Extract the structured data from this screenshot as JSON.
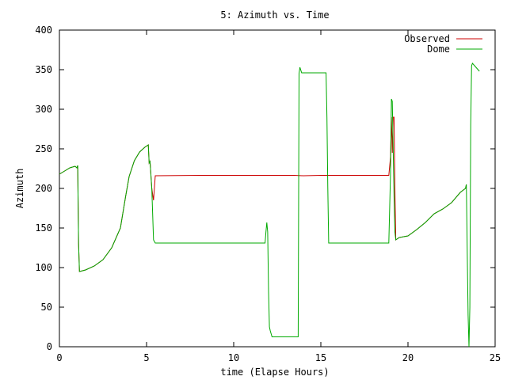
{
  "chart_data": {
    "type": "line",
    "title": "5: Azimuth vs. Time",
    "xlabel": "time (Elapse Hours)",
    "ylabel": "Azimuth",
    "xlim": [
      0,
      25
    ],
    "ylim": [
      0,
      400
    ],
    "xticks": [
      0,
      5,
      10,
      15,
      20,
      25
    ],
    "yticks": [
      0,
      50,
      100,
      150,
      200,
      250,
      300,
      350,
      400
    ],
    "legend_position": "top-right",
    "grid": false,
    "series": [
      {
        "name": "Observed",
        "color": "#cc0000",
        "points": [
          [
            0.0,
            218
          ],
          [
            0.3,
            222
          ],
          [
            0.6,
            226
          ],
          [
            0.9,
            228
          ],
          [
            1.0,
            226
          ],
          [
            1.05,
            229
          ],
          [
            1.1,
            130
          ],
          [
            1.15,
            95
          ],
          [
            1.5,
            97
          ],
          [
            2.0,
            102
          ],
          [
            2.5,
            110
          ],
          [
            3.0,
            125
          ],
          [
            3.5,
            150
          ],
          [
            3.8,
            190
          ],
          [
            4.0,
            215
          ],
          [
            4.3,
            235
          ],
          [
            4.6,
            246
          ],
          [
            4.9,
            252
          ],
          [
            5.1,
            255
          ],
          [
            5.15,
            232
          ],
          [
            5.2,
            234
          ],
          [
            5.3,
            200
          ],
          [
            5.4,
            185
          ],
          [
            5.5,
            216
          ],
          [
            8.0,
            216.5
          ],
          [
            10.0,
            216.5
          ],
          [
            12.0,
            216.5
          ],
          [
            13.5,
            216.5
          ],
          [
            14.0,
            216
          ],
          [
            15.0,
            216.5
          ],
          [
            16.0,
            216.5
          ],
          [
            18.0,
            216.5
          ],
          [
            18.9,
            216.5
          ],
          [
            19.0,
            240
          ],
          [
            19.05,
            290
          ],
          [
            19.1,
            245
          ],
          [
            19.15,
            290
          ],
          [
            19.2,
            290
          ],
          [
            19.25,
            200
          ],
          [
            19.3,
            135
          ],
          [
            19.5,
            138
          ],
          [
            20.0,
            140
          ],
          [
            20.5,
            148
          ],
          [
            21.0,
            157
          ],
          [
            21.5,
            168
          ],
          [
            22.0,
            174
          ],
          [
            22.5,
            182
          ],
          [
            23.0,
            195
          ],
          [
            23.3,
            200
          ],
          [
            23.35,
            205
          ]
        ]
      },
      {
        "name": "Dome",
        "color": "#00aa00",
        "points": [
          [
            0.0,
            218
          ],
          [
            0.3,
            222
          ],
          [
            0.6,
            226
          ],
          [
            0.9,
            228
          ],
          [
            1.0,
            226
          ],
          [
            1.05,
            229
          ],
          [
            1.1,
            130
          ],
          [
            1.15,
            95
          ],
          [
            1.5,
            97
          ],
          [
            2.0,
            102
          ],
          [
            2.5,
            110
          ],
          [
            3.0,
            125
          ],
          [
            3.5,
            150
          ],
          [
            3.8,
            190
          ],
          [
            4.0,
            215
          ],
          [
            4.3,
            235
          ],
          [
            4.6,
            246
          ],
          [
            4.9,
            252
          ],
          [
            5.1,
            255
          ],
          [
            5.15,
            232
          ],
          [
            5.2,
            234
          ],
          [
            5.3,
            200
          ],
          [
            5.4,
            135
          ],
          [
            5.5,
            131
          ],
          [
            8.0,
            131
          ],
          [
            10.0,
            131
          ],
          [
            11.8,
            131
          ],
          [
            11.85,
            145
          ],
          [
            11.9,
            157
          ],
          [
            11.95,
            145
          ],
          [
            12.0,
            70
          ],
          [
            12.05,
            25
          ],
          [
            12.1,
            20
          ],
          [
            12.2,
            12.5
          ],
          [
            13.7,
            12.5
          ],
          [
            13.75,
            345
          ],
          [
            13.8,
            353
          ],
          [
            13.9,
            346
          ],
          [
            15.3,
            346
          ],
          [
            15.35,
            290
          ],
          [
            15.4,
            200
          ],
          [
            15.45,
            131
          ],
          [
            18.9,
            131
          ],
          [
            19.0,
            220
          ],
          [
            19.05,
            313
          ],
          [
            19.1,
            310
          ],
          [
            19.2,
            190
          ],
          [
            19.25,
            145
          ],
          [
            19.3,
            135
          ],
          [
            19.5,
            138
          ],
          [
            20.0,
            140
          ],
          [
            20.5,
            148
          ],
          [
            21.0,
            157
          ],
          [
            21.5,
            168
          ],
          [
            22.0,
            174
          ],
          [
            22.5,
            182
          ],
          [
            23.0,
            195
          ],
          [
            23.3,
            200
          ],
          [
            23.35,
            205
          ],
          [
            23.4,
            120
          ],
          [
            23.45,
            40
          ],
          [
            23.5,
            0
          ],
          [
            23.55,
            50
          ],
          [
            23.6,
            280
          ],
          [
            23.65,
            355
          ],
          [
            23.7,
            358
          ],
          [
            23.9,
            353
          ],
          [
            24.1,
            348
          ]
        ]
      }
    ]
  }
}
